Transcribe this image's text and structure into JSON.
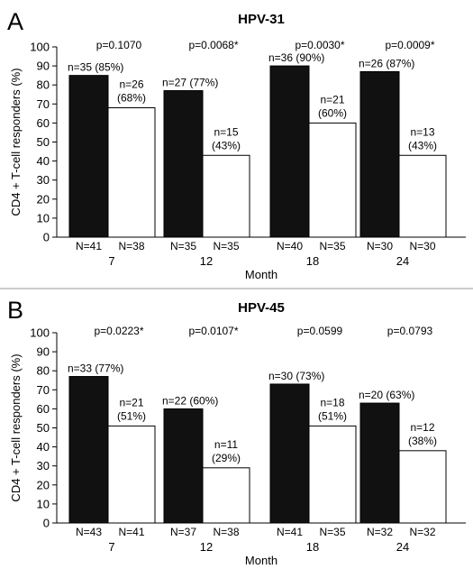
{
  "chart_data": [
    {
      "type": "bar",
      "panel": "A",
      "title": "HPV-31",
      "xlabel": "Month",
      "ylabel": "CD4 + T-cell responders (%)",
      "ylim": [
        0,
        100
      ],
      "yticks": [
        0,
        10,
        20,
        30,
        40,
        50,
        60,
        70,
        80,
        90,
        100
      ],
      "categories": [
        "7",
        "12",
        "18",
        "24"
      ],
      "series": [
        {
          "color": "#111111",
          "values": [
            85,
            77,
            90,
            87
          ],
          "labels": [
            "n=35 (85%)",
            "n=27 (77%)",
            "n=36 (90%)",
            "n=26 (87%)"
          ],
          "N": [
            "N=41",
            "N=35",
            "N=40",
            "N=30"
          ]
        },
        {
          "color": "#ffffff",
          "values": [
            68,
            43,
            60,
            43
          ],
          "labels": [
            [
              "n=26",
              "(68%)"
            ],
            [
              "n=15",
              "(43%)"
            ],
            [
              "n=21",
              "(60%)"
            ],
            [
              "n=13",
              "(43%)"
            ]
          ],
          "N": [
            "N=38",
            "N=35",
            "N=35",
            "N=30"
          ]
        }
      ],
      "pvalues": [
        "p=0.1070",
        "p=0.0068*",
        "p=0.0030*",
        "p=0.0009*"
      ]
    },
    {
      "type": "bar",
      "panel": "B",
      "title": "HPV-45",
      "xlabel": "Month",
      "ylabel": "CD4 + T-cell responders (%)",
      "ylim": [
        0,
        100
      ],
      "yticks": [
        0,
        10,
        20,
        30,
        40,
        50,
        60,
        70,
        80,
        90,
        100
      ],
      "categories": [
        "7",
        "12",
        "18",
        "24"
      ],
      "series": [
        {
          "color": "#111111",
          "values": [
            77,
            60,
            73,
            63
          ],
          "labels": [
            "n=33 (77%)",
            "n=22 (60%)",
            "n=30 (73%)",
            "n=20 (63%)"
          ],
          "N": [
            "N=43",
            "N=37",
            "N=41",
            "N=32"
          ]
        },
        {
          "color": "#ffffff",
          "values": [
            51,
            29,
            51,
            38
          ],
          "labels": [
            [
              "n=21",
              "(51%)"
            ],
            [
              "n=11",
              "(29%)"
            ],
            [
              "n=18",
              "(51%)"
            ],
            [
              "n=12",
              "(38%)"
            ]
          ],
          "N": [
            "N=41",
            "N=38",
            "N=35",
            "N=32"
          ]
        }
      ],
      "pvalues": [
        "p=0.0223*",
        "p=0.0107*",
        "p=0.0599",
        "p=0.0793"
      ]
    }
  ]
}
